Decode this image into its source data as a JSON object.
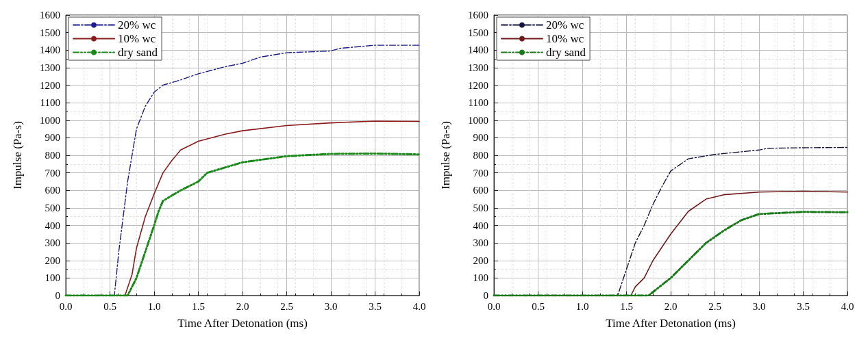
{
  "chart_data": [
    {
      "type": "line",
      "xlabel": "Time After Detonation (ms)",
      "ylabel": "Impulse (Pa-s)",
      "xlim": [
        0,
        4
      ],
      "ylim": [
        0,
        1600
      ],
      "xticks": [
        {
          "value": 0,
          "label": "0.0"
        },
        {
          "value": 0.5,
          "label": "0.5"
        },
        {
          "value": 1,
          "label": "1.0"
        },
        {
          "value": 1.5,
          "label": "1.5"
        },
        {
          "value": 2,
          "label": "2.0"
        },
        {
          "value": 2.5,
          "label": "2.5"
        },
        {
          "value": 3,
          "label": "3.0"
        },
        {
          "value": 3.5,
          "label": "3.5"
        },
        {
          "value": 4,
          "label": "4.0"
        }
      ],
      "yticks": [
        0,
        100,
        200,
        300,
        400,
        500,
        600,
        700,
        800,
        900,
        1000,
        1100,
        1200,
        1300,
        1400,
        1500,
        1600
      ],
      "grid": true,
      "legend": "top left",
      "marker": "none",
      "series": [
        {
          "name": "20% wc",
          "color": "#1c1c8c",
          "line_style": "dashed",
          "x": [
            0,
            0.55,
            0.6,
            0.7,
            0.8,
            0.9,
            1.0,
            1.1,
            1.3,
            1.5,
            1.8,
            2.0,
            2.2,
            2.5,
            3.0,
            3.1,
            3.5,
            4.0
          ],
          "values": [
            0,
            0,
            250,
            650,
            950,
            1080,
            1160,
            1200,
            1230,
            1265,
            1305,
            1325,
            1360,
            1385,
            1395,
            1410,
            1428,
            1428
          ]
        },
        {
          "name": "10% wc",
          "color": "#8b1a1a",
          "line_style": "solid",
          "x": [
            0,
            0.67,
            0.75,
            0.8,
            0.9,
            1.0,
            1.1,
            1.2,
            1.3,
            1.5,
            1.8,
            2.0,
            2.5,
            3.0,
            3.5,
            4.0
          ],
          "values": [
            0,
            0,
            120,
            270,
            450,
            580,
            700,
            770,
            830,
            880,
            920,
            940,
            970,
            985,
            995,
            993
          ]
        },
        {
          "name": "dry sand",
          "color": "#1a8a1a",
          "line_style": "dotted",
          "x": [
            0,
            0.7,
            0.8,
            0.9,
            1.0,
            1.05,
            1.1,
            1.3,
            1.5,
            1.6,
            2.0,
            2.5,
            3.0,
            3.5,
            4.0
          ],
          "values": [
            0,
            0,
            100,
            250,
            400,
            480,
            540,
            600,
            650,
            700,
            760,
            795,
            808,
            810,
            805
          ]
        }
      ]
    },
    {
      "type": "line",
      "xlabel": "Time After Detonation (ms)",
      "ylabel": "Impulse (Pa-s)",
      "xlim": [
        0,
        4
      ],
      "ylim": [
        0,
        1600
      ],
      "xticks": [
        {
          "value": 0,
          "label": "0.0"
        },
        {
          "value": 0.5,
          "label": "0.5"
        },
        {
          "value": 1,
          "label": "1.0"
        },
        {
          "value": 1.5,
          "label": "1.5"
        },
        {
          "value": 2,
          "label": "2.0"
        },
        {
          "value": 2.5,
          "label": "2.5"
        },
        {
          "value": 3,
          "label": "3.0"
        },
        {
          "value": 3.5,
          "label": "3.5"
        },
        {
          "value": 4,
          "label": "4.0"
        }
      ],
      "yticks": [
        0,
        100,
        200,
        300,
        400,
        500,
        600,
        700,
        800,
        900,
        1000,
        1100,
        1200,
        1300,
        1400,
        1500,
        1600
      ],
      "grid": true,
      "legend": "top left",
      "marker": "none",
      "series": [
        {
          "name": "20% wc",
          "color": "#14143c",
          "line_style": "dashed",
          "x": [
            0,
            1.4,
            1.5,
            1.6,
            1.7,
            1.8,
            1.9,
            2.0,
            2.2,
            2.5,
            3.0,
            3.1,
            3.5,
            4.0
          ],
          "values": [
            0,
            0,
            150,
            300,
            400,
            520,
            620,
            710,
            780,
            805,
            830,
            840,
            843,
            845
          ]
        },
        {
          "name": "10% wc",
          "color": "#6e1a1a",
          "line_style": "solid",
          "x": [
            0,
            1.55,
            1.6,
            1.7,
            1.8,
            2.0,
            2.2,
            2.4,
            2.6,
            3.0,
            3.5,
            4.0
          ],
          "values": [
            0,
            0,
            50,
            100,
            200,
            350,
            480,
            550,
            575,
            590,
            595,
            590
          ]
        },
        {
          "name": "dry sand",
          "color": "#1a7a1a",
          "line_style": "dotted",
          "x": [
            0,
            1.75,
            2.0,
            2.2,
            2.4,
            2.6,
            2.8,
            3.0,
            3.5,
            4.0
          ],
          "values": [
            0,
            0,
            100,
            200,
            300,
            370,
            430,
            465,
            477,
            475
          ]
        }
      ]
    }
  ]
}
